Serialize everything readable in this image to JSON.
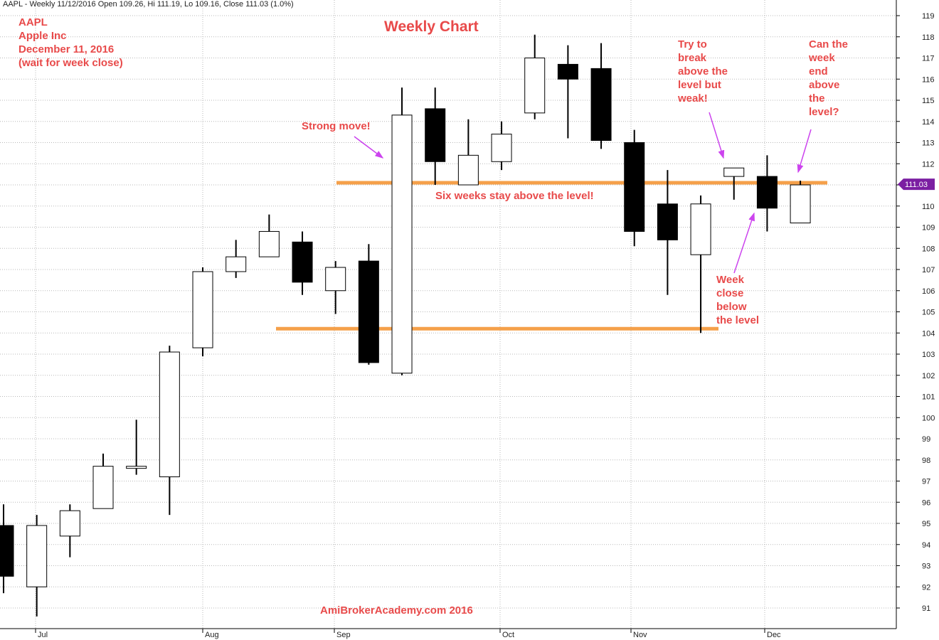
{
  "header": "AAPL - Weekly 11/12/2016 Open 109.26, Hi 111.19, Lo 109.16, Close 111.03 (1.0%)",
  "info": {
    "symbol": "AAPL",
    "company": "Apple Inc",
    "date": "December 11, 2016",
    "note": "(wait for week close)"
  },
  "title": "Weekly Chart",
  "annotations": {
    "strong_move": "Strong move!",
    "six_weeks": "Six weeks stay above the level!",
    "try_break": [
      "Try to",
      "break",
      "above the",
      "level but",
      "weak!"
    ],
    "can_week": [
      "Can the",
      "week",
      "end",
      "above",
      "the",
      "level?"
    ],
    "week_close": [
      "Week",
      "close",
      "below",
      "the level"
    ]
  },
  "watermark": "AmiBrokerAcademy.com  2016",
  "last_price_label": "111.03",
  "colors": {
    "annotation": "#e84a4a",
    "level_line": "#f5a04a",
    "arrow": "#cc44ee",
    "last_price": "#7b1fa2",
    "up_body": "#ffffff",
    "down_body": "#000000"
  },
  "chart_data": {
    "type": "candlestick",
    "y_axis": {
      "min": 90,
      "max": 119.5,
      "ticks": [
        91,
        92,
        93,
        94,
        95,
        96,
        97,
        98,
        99,
        100,
        101,
        102,
        103,
        104,
        105,
        106,
        107,
        108,
        109,
        110,
        111,
        112,
        113,
        114,
        115,
        116,
        117,
        118,
        119
      ],
      "side": "right"
    },
    "x_labels": [
      "Jul",
      "Aug",
      "Sep",
      "Oct",
      "Nov",
      "Dec"
    ],
    "level_lines": [
      111.1,
      104.2
    ],
    "candles": [
      {
        "o": 94.9,
        "h": 95.9,
        "l": 91.7,
        "c": 92.5
      },
      {
        "o": 92.0,
        "h": 95.4,
        "l": 90.6,
        "c": 94.9
      },
      {
        "o": 94.4,
        "h": 95.9,
        "l": 93.4,
        "c": 95.6
      },
      {
        "o": 95.7,
        "h": 98.3,
        "l": 95.7,
        "c": 97.7
      },
      {
        "o": 97.6,
        "h": 99.9,
        "l": 97.3,
        "c": 97.7
      },
      {
        "o": 97.2,
        "h": 103.4,
        "l": 95.4,
        "c": 103.1
      },
      {
        "o": 103.3,
        "h": 107.1,
        "l": 102.9,
        "c": 106.9
      },
      {
        "o": 106.9,
        "h": 108.4,
        "l": 106.6,
        "c": 107.6
      },
      {
        "o": 107.6,
        "h": 109.6,
        "l": 107.6,
        "c": 108.8
      },
      {
        "o": 108.3,
        "h": 108.8,
        "l": 105.8,
        "c": 106.4
      },
      {
        "o": 106.0,
        "h": 107.4,
        "l": 104.9,
        "c": 107.1
      },
      {
        "o": 107.4,
        "h": 108.2,
        "l": 102.5,
        "c": 102.6
      },
      {
        "o": 102.1,
        "h": 115.6,
        "l": 102.0,
        "c": 114.3
      },
      {
        "o": 114.6,
        "h": 115.6,
        "l": 111.0,
        "c": 112.1
      },
      {
        "o": 111.0,
        "h": 114.1,
        "l": 111.0,
        "c": 112.4
      },
      {
        "o": 112.1,
        "h": 114.0,
        "l": 111.7,
        "c": 113.4
      },
      {
        "o": 114.4,
        "h": 118.1,
        "l": 114.1,
        "c": 117.0
      },
      {
        "o": 116.7,
        "h": 117.6,
        "l": 113.2,
        "c": 116.0
      },
      {
        "o": 116.5,
        "h": 117.7,
        "l": 112.7,
        "c": 113.1
      },
      {
        "o": 113.0,
        "h": 113.6,
        "l": 108.1,
        "c": 108.8
      },
      {
        "o": 110.1,
        "h": 111.7,
        "l": 105.8,
        "c": 108.4
      },
      {
        "o": 107.7,
        "h": 110.5,
        "l": 104.0,
        "c": 110.1
      },
      {
        "o": 111.4,
        "h": 111.8,
        "l": 110.3,
        "c": 111.8
      },
      {
        "o": 111.4,
        "h": 112.4,
        "l": 108.8,
        "c": 109.9
      },
      {
        "o": 109.2,
        "h": 111.2,
        "l": 109.2,
        "c": 111.0
      }
    ]
  }
}
